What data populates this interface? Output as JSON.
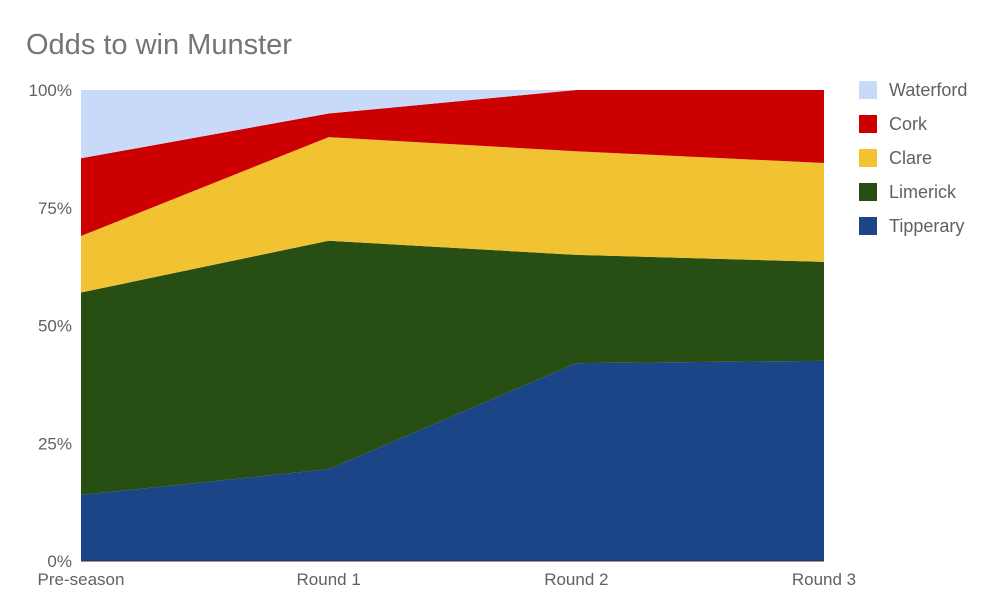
{
  "chart_data": {
    "type": "area",
    "stacked": "percent",
    "title": "Odds to win Munster",
    "xlabel": "",
    "ylabel": "",
    "categories": [
      "Pre-season",
      "Round 1",
      "Round 2",
      "Round 3"
    ],
    "ylim": [
      0,
      100
    ],
    "y_ticks": [
      "0%",
      "25%",
      "50%",
      "75%",
      "100%"
    ],
    "y_tick_values": [
      0,
      25,
      50,
      75,
      100
    ],
    "grid": false,
    "legend_position": "right",
    "series": [
      {
        "name": "Tipperary",
        "color": "#1c4587",
        "values": [
          14,
          19.5,
          42,
          42.5
        ]
      },
      {
        "name": "Limerick",
        "color": "#274e13",
        "values": [
          43,
          48.5,
          23,
          21
        ]
      },
      {
        "name": "Clare",
        "color": "#f1c232",
        "values": [
          12,
          22,
          22,
          21
        ]
      },
      {
        "name": "Cork",
        "color": "#cc0000",
        "values": [
          16.5,
          5,
          13,
          15.5
        ]
      },
      {
        "name": "Waterford",
        "color": "#c9daf8",
        "values": [
          14.5,
          5,
          0,
          0
        ]
      }
    ]
  }
}
